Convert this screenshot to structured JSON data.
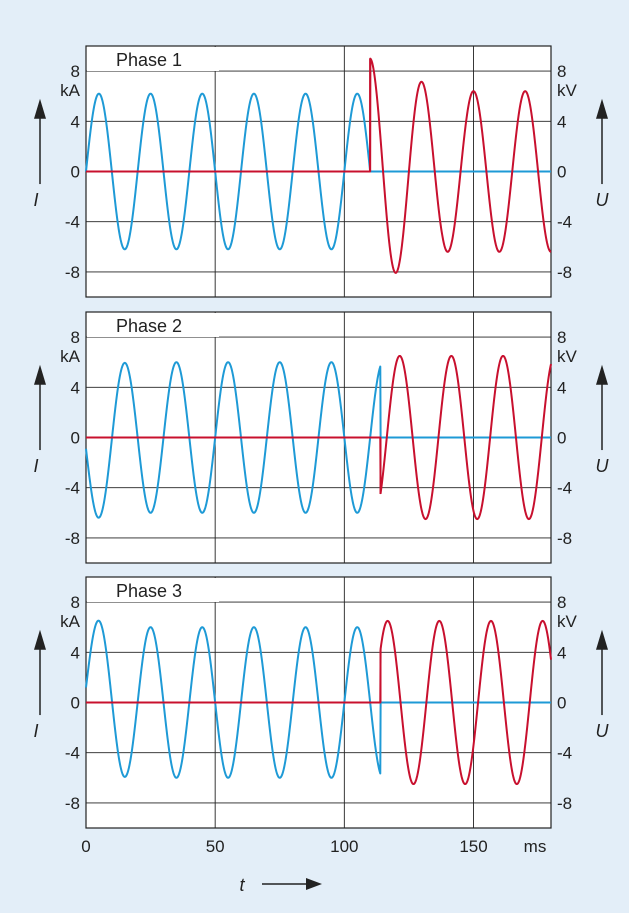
{
  "figure": {
    "background": "#e3eef8",
    "axis_color": "#222222",
    "time_label": "t",
    "time_unit": "ms"
  },
  "chart_data": [
    {
      "type": "line",
      "title": "Phase 1",
      "xlim": [
        0,
        180
      ],
      "ylim_left": [
        -10,
        10
      ],
      "ylim_right": [
        -10,
        10
      ],
      "left_axis": {
        "symbol": "I",
        "unit": "kA",
        "ticks": [
          8,
          4,
          0,
          -4,
          -8
        ]
      },
      "right_axis": {
        "symbol": "U",
        "unit": "kV",
        "ticks": [
          8,
          4,
          0,
          -4,
          -8
        ]
      },
      "x_ticks": [
        0,
        50,
        100,
        150
      ],
      "grid": true,
      "series": [
        {
          "color": "#1e9ad6",
          "axis": "left",
          "description": "current",
          "segments": [
            {
              "type": "sine",
              "t_start": 0,
              "t_end": 110,
              "amplitude": 6.2,
              "period": 20,
              "phase_deg": 0,
              "offset": 0
            },
            {
              "type": "flat",
              "t_start": 110,
              "t_end": 180,
              "value": 0
            }
          ]
        },
        {
          "color": "#c8102e",
          "axis": "right",
          "description": "voltage",
          "segments": [
            {
              "type": "flat",
              "t_start": 0,
              "t_end": 110,
              "value": 0
            },
            {
              "type": "jump",
              "t": 110,
              "from": 0,
              "to": 9.0
            },
            {
              "type": "damped_sine",
              "t_start": 110,
              "t_end": 180,
              "amplitude": 9.0,
              "decay_to": 6.4,
              "period": 20,
              "start_phase": "peak"
            }
          ]
        }
      ]
    },
    {
      "type": "line",
      "title": "Phase 2",
      "xlim": [
        0,
        180
      ],
      "ylim_left": [
        -10,
        10
      ],
      "ylim_right": [
        -10,
        10
      ],
      "left_axis": {
        "symbol": "I",
        "unit": "kA",
        "ticks": [
          8,
          4,
          0,
          -4,
          -8
        ]
      },
      "right_axis": {
        "symbol": "U",
        "unit": "kV",
        "ticks": [
          8,
          4,
          0,
          -4,
          -8
        ]
      },
      "x_ticks": [
        0,
        50,
        100,
        150
      ],
      "grid": true,
      "series": [
        {
          "color": "#1e9ad6",
          "axis": "left",
          "description": "current",
          "segments": [
            {
              "type": "sine",
              "t_start": 0,
              "t_end": 114,
              "amplitude": 6.0,
              "period": 20,
              "phase_deg": 180,
              "offset": -0.9,
              "offset_decay": 8
            },
            {
              "type": "flat",
              "t_start": 114,
              "t_end": 180,
              "value": 0
            }
          ]
        },
        {
          "color": "#c8102e",
          "axis": "right",
          "description": "voltage",
          "segments": [
            {
              "type": "flat",
              "t_start": 0,
              "t_end": 114,
              "value": 0
            },
            {
              "type": "jump",
              "t": 114,
              "from": 0,
              "to": -4.5
            },
            {
              "type": "damped_sine",
              "t_start": 114,
              "t_end": 180,
              "amplitude": 6.5,
              "decay_to": 6.5,
              "period": 20,
              "start_phase": "-4.5"
            }
          ]
        }
      ]
    },
    {
      "type": "line",
      "title": "Phase 3",
      "xlim": [
        0,
        180
      ],
      "ylim_left": [
        -10,
        10
      ],
      "ylim_right": [
        -10,
        10
      ],
      "left_axis": {
        "symbol": "I",
        "unit": "kA",
        "ticks": [
          8,
          4,
          0,
          -4,
          -8
        ]
      },
      "right_axis": {
        "symbol": "U",
        "unit": "kV",
        "ticks": [
          8,
          4,
          0,
          -4,
          -8
        ]
      },
      "x_ticks": [
        0,
        50,
        100,
        150
      ],
      "grid": true,
      "series": [
        {
          "color": "#1e9ad6",
          "axis": "left",
          "description": "current",
          "segments": [
            {
              "type": "sine",
              "t_start": 0,
              "t_end": 114,
              "amplitude": 6.0,
              "period": 20,
              "phase_deg": 0,
              "offset": 1.2,
              "offset_decay": 8
            },
            {
              "type": "flat",
              "t_start": 114,
              "t_end": 180,
              "value": 0
            }
          ]
        },
        {
          "color": "#c8102e",
          "axis": "right",
          "description": "voltage",
          "segments": [
            {
              "type": "flat",
              "t_start": 0,
              "t_end": 114,
              "value": 0
            },
            {
              "type": "jump",
              "t": 114,
              "from": 0,
              "to": 4.2
            },
            {
              "type": "damped_sine",
              "t_start": 114,
              "t_end": 180,
              "amplitude": 6.5,
              "decay_to": 6.5,
              "period": 20,
              "start_phase": "4.2"
            }
          ]
        }
      ]
    }
  ]
}
